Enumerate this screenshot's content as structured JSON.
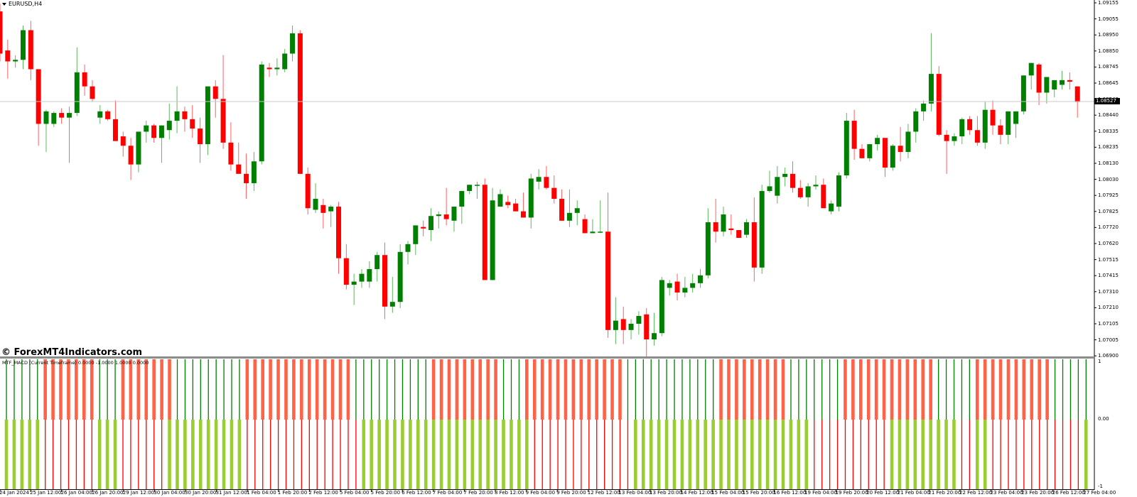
{
  "window": {
    "title": "EURUSD,H4",
    "symbol": "EURUSD",
    "timeframe": "H4"
  },
  "watermark": "© ForexMT4Indicators.com",
  "indicator": {
    "label": "MTF_MACD (Current Timeframe) 0.0000 -1.0000 1.0000 0.0000",
    "scale": [
      "1",
      "0.00",
      "-1"
    ]
  },
  "price_axis": {
    "labels": [
      "1.09155",
      "1.09055",
      "1.08950",
      "1.08850",
      "1.08745",
      "1.08645",
      "1.08540",
      "1.08440",
      "1.08335",
      "1.08235",
      "1.08130",
      "1.08030",
      "1.07925",
      "1.07825",
      "1.07720",
      "1.07620",
      "1.07515",
      "1.07415",
      "1.07310",
      "1.07210",
      "1.07105",
      "1.07005",
      "1.06900"
    ],
    "current_price": "1.08527"
  },
  "time_axis": {
    "labels": [
      "24 Jan 2024",
      "25 Jan 12:00",
      "26 Jan 04:00",
      "26 Jan 20:00",
      "29 Jan 12:00",
      "30 Jan 04:00",
      "30 Jan 20:00",
      "31 Jan 12:00",
      "1 Feb 04:00",
      "1 Feb 20:00",
      "2 Feb 12:00",
      "5 Feb 04:00",
      "5 Feb 20:00",
      "6 Feb 12:00",
      "7 Feb 04:00",
      "7 Feb 20:00",
      "8 Feb 12:00",
      "9 Feb 04:00",
      "9 Feb 20:00",
      "12 Feb 12:00",
      "13 Feb 04:00",
      "13 Feb 20:00",
      "14 Feb 12:00",
      "15 Feb 04:00",
      "15 Feb 20:00",
      "16 Feb 12:00",
      "19 Feb 04:00",
      "19 Feb 20:00",
      "20 Feb 12:00",
      "21 Feb 04:00",
      "21 Feb 20:00",
      "22 Feb 12:00",
      "23 Feb 04:00",
      "23 Feb 20:00",
      "26 Feb 12:00",
      "27 Feb 04:00"
    ]
  },
  "colors": {
    "bull": "#008000",
    "bear": "#ff0000",
    "macd_up_top": "#008000",
    "macd_down_top": "#ff6347",
    "macd_up_bottom": "#9acd32",
    "macd_down_bottom": "#ff0000",
    "grid": "#c0c0c0"
  },
  "chart_data": {
    "type": "candlestick",
    "title": "EURUSD,H4",
    "ylim": [
      1.069,
      1.09155
    ],
    "candles": [
      {
        "o": 1.091,
        "h": 1.0915,
        "l": 1.0878,
        "c": 1.0883
      },
      {
        "o": 1.0885,
        "h": 1.0892,
        "l": 1.0867,
        "c": 1.0878
      },
      {
        "o": 1.0878,
        "h": 1.0882,
        "l": 1.0874,
        "c": 1.0879
      },
      {
        "o": 1.0879,
        "h": 1.0901,
        "l": 1.0873,
        "c": 1.0898
      },
      {
        "o": 1.0898,
        "h": 1.0904,
        "l": 1.0866,
        "c": 1.0873
      },
      {
        "o": 1.0873,
        "h": 1.0873,
        "l": 1.0824,
        "c": 1.0838
      },
      {
        "o": 1.0838,
        "h": 1.0847,
        "l": 1.082,
        "c": 1.0846
      },
      {
        "o": 1.0838,
        "h": 1.0846,
        "l": 1.0836,
        "c": 1.0845
      },
      {
        "o": 1.0845,
        "h": 1.0848,
        "l": 1.0838,
        "c": 1.0842
      },
      {
        "o": 1.0842,
        "h": 1.0849,
        "l": 1.0813,
        "c": 1.0845
      },
      {
        "o": 1.0845,
        "h": 1.0887,
        "l": 1.0843,
        "c": 1.0871
      },
      {
        "o": 1.0871,
        "h": 1.0876,
        "l": 1.0856,
        "c": 1.0862
      },
      {
        "o": 1.0862,
        "h": 1.0866,
        "l": 1.0852,
        "c": 1.0854
      },
      {
        "o": 1.0842,
        "h": 1.085,
        "l": 1.0838,
        "c": 1.0846
      },
      {
        "o": 1.0846,
        "h": 1.0847,
        "l": 1.084,
        "c": 1.0841
      },
      {
        "o": 1.0841,
        "h": 1.0853,
        "l": 1.083,
        "c": 1.0827
      },
      {
        "o": 1.083,
        "h": 1.0833,
        "l": 1.0817,
        "c": 1.0824
      },
      {
        "o": 1.0824,
        "h": 1.0829,
        "l": 1.0802,
        "c": 1.0812
      },
      {
        "o": 1.0812,
        "h": 1.0832,
        "l": 1.0807,
        "c": 1.0833
      },
      {
        "o": 1.0833,
        "h": 1.084,
        "l": 1.0826,
        "c": 1.0837
      },
      {
        "o": 1.0837,
        "h": 1.0838,
        "l": 1.0826,
        "c": 1.0829
      },
      {
        "o": 1.0829,
        "h": 1.0836,
        "l": 1.0813,
        "c": 1.0837
      },
      {
        "o": 1.0834,
        "h": 1.0851,
        "l": 1.0828,
        "c": 1.084
      },
      {
        "o": 1.084,
        "h": 1.0862,
        "l": 1.0832,
        "c": 1.0846
      },
      {
        "o": 1.0846,
        "h": 1.0849,
        "l": 1.0833,
        "c": 1.0841
      },
      {
        "o": 1.0841,
        "h": 1.085,
        "l": 1.0829,
        "c": 1.0835
      },
      {
        "o": 1.0835,
        "h": 1.0842,
        "l": 1.0813,
        "c": 1.0825
      },
      {
        "o": 1.0825,
        "h": 1.0855,
        "l": 1.0818,
        "c": 1.0862
      },
      {
        "o": 1.0862,
        "h": 1.0866,
        "l": 1.0842,
        "c": 1.0854
      },
      {
        "o": 1.0854,
        "h": 1.0882,
        "l": 1.0822,
        "c": 1.0826
      },
      {
        "o": 1.0826,
        "h": 1.0839,
        "l": 1.0808,
        "c": 1.0812
      },
      {
        "o": 1.0812,
        "h": 1.0826,
        "l": 1.0808,
        "c": 1.0806
      },
      {
        "o": 1.0806,
        "h": 1.0819,
        "l": 1.079,
        "c": 1.08
      },
      {
        "o": 1.08,
        "h": 1.082,
        "l": 1.0795,
        "c": 1.0814
      },
      {
        "o": 1.0814,
        "h": 1.0878,
        "l": 1.0812,
        "c": 1.0876
      },
      {
        "o": 1.0874,
        "h": 1.0877,
        "l": 1.0868,
        "c": 1.0873
      },
      {
        "o": 1.0873,
        "h": 1.088,
        "l": 1.0869,
        "c": 1.0874
      },
      {
        "o": 1.0873,
        "h": 1.0886,
        "l": 1.0871,
        "c": 1.0883
      },
      {
        "o": 1.0883,
        "h": 1.0901,
        "l": 1.0878,
        "c": 1.0896
      },
      {
        "o": 1.0896,
        "h": 1.0898,
        "l": 1.082,
        "c": 1.0806
      },
      {
        "o": 1.0806,
        "h": 1.081,
        "l": 1.078,
        "c": 1.0784
      },
      {
        "o": 1.0783,
        "h": 1.08,
        "l": 1.0781,
        "c": 1.079
      },
      {
        "o": 1.0786,
        "h": 1.079,
        "l": 1.0771,
        "c": 1.0781
      },
      {
        "o": 1.0782,
        "h": 1.0786,
        "l": 1.0772,
        "c": 1.0785
      },
      {
        "o": 1.0785,
        "h": 1.0788,
        "l": 1.0742,
        "c": 1.0752
      },
      {
        "o": 1.0752,
        "h": 1.0761,
        "l": 1.0732,
        "c": 1.0735
      },
      {
        "o": 1.0735,
        "h": 1.0742,
        "l": 1.0722,
        "c": 1.0737
      },
      {
        "o": 1.0737,
        "h": 1.0745,
        "l": 1.0733,
        "c": 1.0742
      },
      {
        "o": 1.0737,
        "h": 1.075,
        "l": 1.0733,
        "c": 1.0745
      },
      {
        "o": 1.0745,
        "h": 1.0756,
        "l": 1.0737,
        "c": 1.0754
      },
      {
        "o": 1.0754,
        "h": 1.0762,
        "l": 1.0713,
        "c": 1.0721
      },
      {
        "o": 1.0721,
        "h": 1.074,
        "l": 1.0717,
        "c": 1.0724
      },
      {
        "o": 1.0724,
        "h": 1.0761,
        "l": 1.072,
        "c": 1.0756
      },
      {
        "o": 1.0756,
        "h": 1.0763,
        "l": 1.0748,
        "c": 1.0761
      },
      {
        "o": 1.0761,
        "h": 1.0769,
        "l": 1.0754,
        "c": 1.0773
      },
      {
        "o": 1.0772,
        "h": 1.0776,
        "l": 1.0766,
        "c": 1.0771
      },
      {
        "o": 1.077,
        "h": 1.0784,
        "l": 1.0763,
        "c": 1.0779
      },
      {
        "o": 1.0779,
        "h": 1.0782,
        "l": 1.0771,
        "c": 1.078
      },
      {
        "o": 1.078,
        "h": 1.0797,
        "l": 1.0773,
        "c": 1.0777
      },
      {
        "o": 1.0776,
        "h": 1.0783,
        "l": 1.0769,
        "c": 1.0785
      },
      {
        "o": 1.0785,
        "h": 1.0792,
        "l": 1.0774,
        "c": 1.0795
      },
      {
        "o": 1.0795,
        "h": 1.0799,
        "l": 1.0793,
        "c": 1.0799
      },
      {
        "o": 1.0799,
        "h": 1.0801,
        "l": 1.079,
        "c": 1.0799
      },
      {
        "o": 1.0799,
        "h": 1.0803,
        "l": 1.0738,
        "c": 1.0738
      },
      {
        "o": 1.0738,
        "h": 1.0797,
        "l": 1.0738,
        "c": 1.0789
      },
      {
        "o": 1.0785,
        "h": 1.0796,
        "l": 1.0787,
        "c": 1.0793
      },
      {
        "o": 1.0788,
        "h": 1.0792,
        "l": 1.0784,
        "c": 1.0786
      },
      {
        "o": 1.0787,
        "h": 1.079,
        "l": 1.0782,
        "c": 1.0782
      },
      {
        "o": 1.0782,
        "h": 1.0794,
        "l": 1.0778,
        "c": 1.0778
      },
      {
        "o": 1.0778,
        "h": 1.0806,
        "l": 1.0771,
        "c": 1.0803
      },
      {
        "o": 1.0801,
        "h": 1.0809,
        "l": 1.0796,
        "c": 1.0804
      },
      {
        "o": 1.0804,
        "h": 1.0811,
        "l": 1.0796,
        "c": 1.0797
      },
      {
        "o": 1.0797,
        "h": 1.0805,
        "l": 1.0787,
        "c": 1.079
      },
      {
        "o": 1.079,
        "h": 1.0796,
        "l": 1.0776,
        "c": 1.0776
      },
      {
        "o": 1.0776,
        "h": 1.0796,
        "l": 1.0772,
        "c": 1.0781
      },
      {
        "o": 1.0781,
        "h": 1.0789,
        "l": 1.0773,
        "c": 1.0784
      },
      {
        "o": 1.0777,
        "h": 1.078,
        "l": 1.0769,
        "c": 1.0768
      },
      {
        "o": 1.0768,
        "h": 1.0777,
        "l": 1.0769,
        "c": 1.0769
      },
      {
        "o": 1.0769,
        "h": 1.0789,
        "l": 1.0768,
        "c": 1.0769
      },
      {
        "o": 1.0769,
        "h": 1.0794,
        "l": 1.0701,
        "c": 1.0706
      },
      {
        "o": 1.0706,
        "h": 1.0727,
        "l": 1.0697,
        "c": 1.0712
      },
      {
        "o": 1.0713,
        "h": 1.0721,
        "l": 1.0697,
        "c": 1.0706
      },
      {
        "o": 1.0706,
        "h": 1.0713,
        "l": 1.07,
        "c": 1.071
      },
      {
        "o": 1.071,
        "h": 1.0718,
        "l": 1.0703,
        "c": 1.0715
      },
      {
        "o": 1.0716,
        "h": 1.072,
        "l": 1.0688,
        "c": 1.07
      },
      {
        "o": 1.07,
        "h": 1.0717,
        "l": 1.0696,
        "c": 1.0704
      },
      {
        "o": 1.0704,
        "h": 1.074,
        "l": 1.0702,
        "c": 1.0738
      },
      {
        "o": 1.0733,
        "h": 1.0738,
        "l": 1.0728,
        "c": 1.0736
      },
      {
        "o": 1.0737,
        "h": 1.0742,
        "l": 1.0725,
        "c": 1.073
      },
      {
        "o": 1.073,
        "h": 1.074,
        "l": 1.0727,
        "c": 1.0733
      },
      {
        "o": 1.0733,
        "h": 1.0742,
        "l": 1.073,
        "c": 1.0736
      },
      {
        "o": 1.0736,
        "h": 1.0745,
        "l": 1.0733,
        "c": 1.0741
      },
      {
        "o": 1.0741,
        "h": 1.0784,
        "l": 1.0739,
        "c": 1.0775
      },
      {
        "o": 1.0775,
        "h": 1.079,
        "l": 1.0762,
        "c": 1.0769
      },
      {
        "o": 1.0769,
        "h": 1.0785,
        "l": 1.0766,
        "c": 1.078
      },
      {
        "o": 1.0771,
        "h": 1.078,
        "l": 1.0767,
        "c": 1.077
      },
      {
        "o": 1.077,
        "h": 1.077,
        "l": 1.0766,
        "c": 1.0765
      },
      {
        "o": 1.0767,
        "h": 1.0777,
        "l": 1.0765,
        "c": 1.0775
      },
      {
        "o": 1.0775,
        "h": 1.0791,
        "l": 1.0737,
        "c": 1.0746
      },
      {
        "o": 1.0746,
        "h": 1.0799,
        "l": 1.0742,
        "c": 1.0795
      },
      {
        "o": 1.0795,
        "h": 1.0808,
        "l": 1.0794,
        "c": 1.0798
      },
      {
        "o": 1.0792,
        "h": 1.0811,
        "l": 1.0787,
        "c": 1.0804
      },
      {
        "o": 1.0804,
        "h": 1.081,
        "l": 1.0798,
        "c": 1.0806
      },
      {
        "o": 1.0806,
        "h": 1.0814,
        "l": 1.0794,
        "c": 1.0797
      },
      {
        "o": 1.0797,
        "h": 1.0802,
        "l": 1.079,
        "c": 1.0791
      },
      {
        "o": 1.0791,
        "h": 1.08,
        "l": 1.0785,
        "c": 1.0798
      },
      {
        "o": 1.0798,
        "h": 1.0805,
        "l": 1.0796,
        "c": 1.0799
      },
      {
        "o": 1.0799,
        "h": 1.0803,
        "l": 1.0786,
        "c": 1.0784
      },
      {
        "o": 1.0782,
        "h": 1.0789,
        "l": 1.078,
        "c": 1.0787
      },
      {
        "o": 1.0785,
        "h": 1.0807,
        "l": 1.0782,
        "c": 1.0805
      },
      {
        "o": 1.0805,
        "h": 1.0845,
        "l": 1.0803,
        "c": 1.084
      },
      {
        "o": 1.084,
        "h": 1.0847,
        "l": 1.0815,
        "c": 1.0822
      },
      {
        "o": 1.0822,
        "h": 1.0825,
        "l": 1.0816,
        "c": 1.0816
      },
      {
        "o": 1.0816,
        "h": 1.0825,
        "l": 1.0814,
        "c": 1.0825
      },
      {
        "o": 1.0825,
        "h": 1.0831,
        "l": 1.0821,
        "c": 1.0829
      },
      {
        "o": 1.0829,
        "h": 1.0829,
        "l": 1.0804,
        "c": 1.081
      },
      {
        "o": 1.081,
        "h": 1.0825,
        "l": 1.0808,
        "c": 1.0824
      },
      {
        "o": 1.0824,
        "h": 1.0836,
        "l": 1.0814,
        "c": 1.082
      },
      {
        "o": 1.082,
        "h": 1.0838,
        "l": 1.0816,
        "c": 1.0833
      },
      {
        "o": 1.0833,
        "h": 1.0848,
        "l": 1.0826,
        "c": 1.0846
      },
      {
        "o": 1.0846,
        "h": 1.0853,
        "l": 1.084,
        "c": 1.0851
      },
      {
        "o": 1.0851,
        "h": 1.0896,
        "l": 1.0846,
        "c": 1.087
      },
      {
        "o": 1.087,
        "h": 1.0875,
        "l": 1.083,
        "c": 1.0831
      },
      {
        "o": 1.0831,
        "h": 1.0834,
        "l": 1.0806,
        "c": 1.0827
      },
      {
        "o": 1.0827,
        "h": 1.0832,
        "l": 1.0824,
        "c": 1.083
      },
      {
        "o": 1.083,
        "h": 1.0842,
        "l": 1.0825,
        "c": 1.0841
      },
      {
        "o": 1.0841,
        "h": 1.0843,
        "l": 1.0831,
        "c": 1.0834
      },
      {
        "o": 1.0834,
        "h": 1.0843,
        "l": 1.0824,
        "c": 1.0826
      },
      {
        "o": 1.0826,
        "h": 1.0852,
        "l": 1.0822,
        "c": 1.0847
      },
      {
        "o": 1.0847,
        "h": 1.0853,
        "l": 1.0831,
        "c": 1.0837
      },
      {
        "o": 1.0837,
        "h": 1.0841,
        "l": 1.0825,
        "c": 1.0831
      },
      {
        "o": 1.0831,
        "h": 1.0841,
        "l": 1.0825,
        "c": 1.0846
      },
      {
        "o": 1.0838,
        "h": 1.0846,
        "l": 1.0829,
        "c": 1.0846
      },
      {
        "o": 1.0846,
        "h": 1.0861,
        "l": 1.0844,
        "c": 1.0869
      },
      {
        "o": 1.0869,
        "h": 1.0873,
        "l": 1.086,
        "c": 1.0877
      },
      {
        "o": 1.0876,
        "h": 1.0877,
        "l": 1.085,
        "c": 1.0858
      },
      {
        "o": 1.0858,
        "h": 1.0868,
        "l": 1.0851,
        "c": 1.0868
      },
      {
        "o": 1.086,
        "h": 1.0866,
        "l": 1.0855,
        "c": 1.0866
      },
      {
        "o": 1.0863,
        "h": 1.0872,
        "l": 1.086,
        "c": 1.0866
      },
      {
        "o": 1.0866,
        "h": 1.0871,
        "l": 1.086,
        "c": 1.0865
      },
      {
        "o": 1.0862,
        "h": 1.0862,
        "l": 1.0842,
        "c": 1.0852
      }
    ]
  },
  "macd_bars": {
    "top": "tttttdddddddtttdddddddtttttttttddddddddddddddttttttttttdddddddddtttdddddddddddddttttttttttttdddddddddtttttttddddddddddddtttttddddddddddtttttt",
    "bottom": "uuuuuddddddduuudddddduuuuuuuuuuddddddddddddddduuuuuuuuuuuuuuuuuuuuuuddddddddddddduuuuuuuuuuuuuuuuuuuuuuudddddddddduuuuuuuuudduudddddddddddduuuuu"
  }
}
